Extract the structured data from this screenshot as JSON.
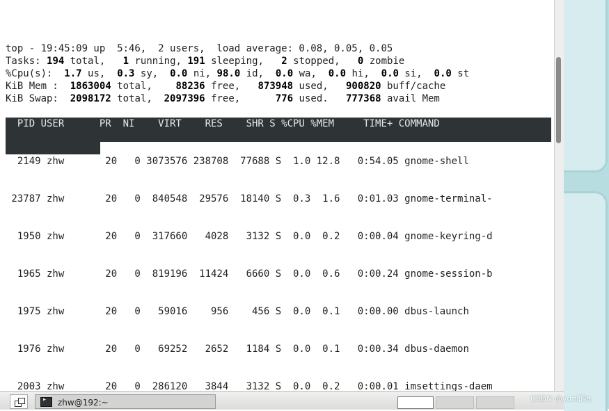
{
  "summary": {
    "line1": {
      "prefix": "top - 19:45:09 up  5:46,  2 users,  load average: 0.08, 0.05, 0.05"
    },
    "tasks": {
      "label": "Tasks:",
      "total": "194",
      "total_label": "total,",
      "running": "1",
      "running_label": "running,",
      "sleeping": "191",
      "sleeping_label": "sleeping,",
      "stopped": "2",
      "stopped_label": "stopped,",
      "zombie": "0",
      "zombie_label": "zombie"
    },
    "cpu": {
      "label": "%Cpu(s):",
      "us": "1.7",
      "us_label": "us,",
      "sy": "0.3",
      "sy_label": "sy,",
      "ni": "0.0",
      "ni_label": "ni,",
      "id": "98.0",
      "id_label": "id,",
      "wa": "0.0",
      "wa_label": "wa,",
      "hi": "0.0",
      "hi_label": "hi,",
      "si": "0.0",
      "si_label": "si,",
      "st": "0.0",
      "st_label": "st"
    },
    "mem": {
      "label": "KiB Mem :",
      "total": "1863004",
      "total_label": "total,",
      "free": "88236",
      "free_label": "free,",
      "used": "873948",
      "used_label": "used,",
      "buff": "900820",
      "buff_label": "buff/cache"
    },
    "swap": {
      "label": "KiB Swap:",
      "total": "2098172",
      "total_label": "total,",
      "free": "2097396",
      "free_label": "free,",
      "used": "776",
      "used_label": "used.",
      "avail": "777368",
      "avail_label": "avail Mem"
    }
  },
  "table": {
    "header": "  PID USER      PR  NI    VIRT    RES    SHR S %CPU %MEM     TIME+ COMMAND",
    "rows": [
      "  2149 zhw       20   0 3073576 238708  77688 S  1.0 12.8   0:54.05 gnome-shell",
      " 23787 zhw       20   0  840548  29576  18140 S  0.3  1.6   0:01.03 gnome-terminal-",
      "  1950 zhw       20   0  317660   4028   3132 S  0.0  0.2   0:00.04 gnome-keyring-d",
      "  1965 zhw       20   0  819196  11424   6660 S  0.0  0.6   0:00.24 gnome-session-b",
      "  1975 zhw       20   0   59016    956    456 S  0.0  0.1   0:00.00 dbus-launch",
      "  1976 zhw       20   0   69252   2652   1184 S  0.0  0.1   0:00.34 dbus-daemon",
      "  2003 zhw       20   0  286120   3844   3132 S  0.0  0.2   0:00.01 imsettings-daem"
    ]
  },
  "taskbar": {
    "window_label": "zhw@192:~",
    "watermark": "CSDN @yuni的q"
  },
  "icons": {
    "show_desktop": "show-desktop-icon",
    "terminal": "terminal-icon"
  }
}
